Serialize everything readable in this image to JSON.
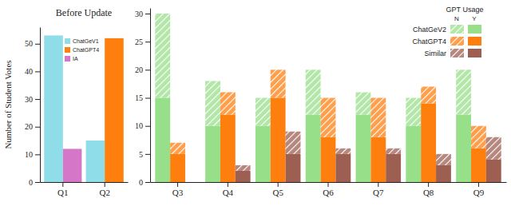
{
  "chart_data": [
    {
      "type": "bar",
      "title": "Before Update",
      "y_label": "Number of Student Votes",
      "categories": [
        "Q1",
        "Q2"
      ],
      "series": [
        {
          "name": "ChatGeV1",
          "color": "#8fdde8",
          "values": [
            53,
            15
          ]
        },
        {
          "name": "ChatGPT4",
          "color": "#ff7f0e",
          "values": [
            null,
            52
          ]
        },
        {
          "name": "IA",
          "color": "#d676c8",
          "values": [
            12,
            null
          ]
        }
      ],
      "ylim": [
        0,
        56
      ],
      "yticks": [
        0,
        10,
        20,
        30,
        40,
        50
      ],
      "legend": "upper center"
    },
    {
      "type": "bar",
      "stacked": true,
      "legend": "upper right",
      "legend_title": "GPT Usage",
      "categories": [
        "Q3",
        "Q4",
        "Q5",
        "Q6",
        "Q7",
        "Q8",
        "Q9"
      ],
      "series": [
        {
          "name": "ChatGeV2",
          "color": "#98df8a",
          "segments": [
            {
              "name": "N",
              "values": [
                15,
                8,
                5,
                8,
                4,
                5,
                8
              ]
            },
            {
              "name": "Y",
              "values": [
                15,
                10,
                10,
                12,
                12,
                10,
                12
              ]
            }
          ]
        },
        {
          "name": "ChatGPT4",
          "color": "#ff7f0e",
          "segments": [
            {
              "name": "N",
              "values": [
                2,
                4,
                5,
                7,
                7,
                3,
                4
              ]
            },
            {
              "name": "Y",
              "values": [
                5,
                12,
                15,
                8,
                8,
                14,
                6
              ]
            }
          ]
        },
        {
          "name": "Similar",
          "color": "#9c5f52",
          "segments": [
            {
              "name": "N",
              "values": [
                null,
                1,
                4,
                1,
                1,
                2,
                4
              ]
            },
            {
              "name": "Y",
              "values": [
                null,
                2,
                5,
                5,
                5,
                3,
                4
              ]
            }
          ]
        }
      ],
      "ylim": [
        0,
        31
      ],
      "yticks": [
        0,
        5,
        10,
        15,
        20,
        25,
        30
      ]
    }
  ]
}
